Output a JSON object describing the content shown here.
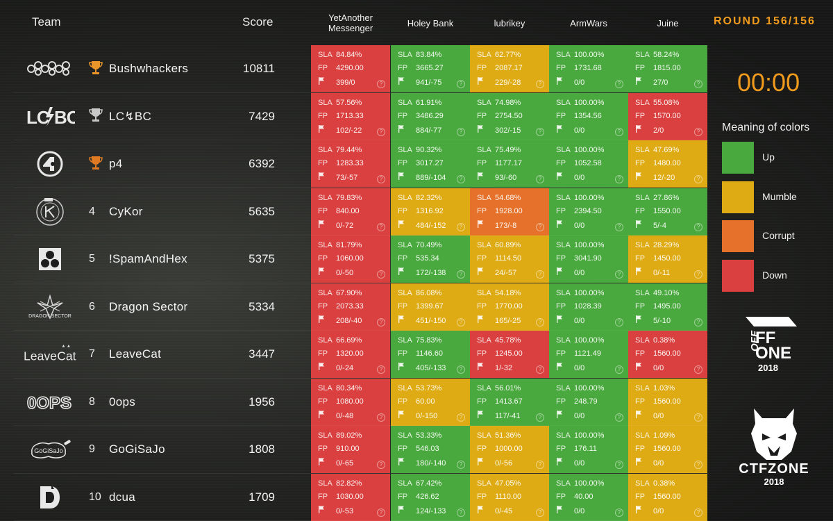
{
  "header": {
    "team": "Team",
    "score": "Score",
    "round": "ROUND 156/156"
  },
  "services": [
    "YetAnother Messenger",
    "Holey Bank",
    "lubrikey",
    "ArmWars",
    "Juine"
  ],
  "timer": "00:00",
  "legend": {
    "title": "Meaning of colors",
    "items": [
      {
        "label": "Up",
        "color": "#49a93e"
      },
      {
        "label": "Mumble",
        "color": "#dfab14"
      },
      {
        "label": "Corrupt",
        "color": "#e5712a"
      },
      {
        "label": "Down",
        "color": "#d9403f"
      }
    ]
  },
  "labels": {
    "sla": "SLA",
    "fp": "FP",
    "help": "?"
  },
  "sponsors": {
    "offzone": {
      "line1": "FF",
      "line2": "ONE",
      "year": "2018"
    },
    "ctfzone": {
      "name": "CTFZONE",
      "year": "2018"
    }
  },
  "teams": [
    {
      "rank": "",
      "trophy": "gold",
      "logo": "bushwhackers-logo",
      "name": "Bushwhackers",
      "score": "10811",
      "cells": [
        {
          "status": "down",
          "sla": "84.84%",
          "fp": "4290.00",
          "flags": "399/0"
        },
        {
          "status": "up",
          "sla": "83.84%",
          "fp": "3665.27",
          "flags": "941/-75"
        },
        {
          "status": "mumble",
          "sla": "62.77%",
          "fp": "2087.17",
          "flags": "229/-28"
        },
        {
          "status": "up",
          "sla": "100.00%",
          "fp": "1731.68",
          "flags": "0/0"
        },
        {
          "status": "up",
          "sla": "58.24%",
          "fp": "1815.00",
          "flags": "27/0"
        }
      ]
    },
    {
      "rank": "",
      "trophy": "silver",
      "logo": "lcbc-logo",
      "name": "LC↯BC",
      "score": "7429",
      "cells": [
        {
          "status": "down",
          "sla": "57.56%",
          "fp": "1713.33",
          "flags": "102/-22"
        },
        {
          "status": "up",
          "sla": "61.91%",
          "fp": "3486.29",
          "flags": "884/-77"
        },
        {
          "status": "up",
          "sla": "74.98%",
          "fp": "2754.50",
          "flags": "302/-15"
        },
        {
          "status": "up",
          "sla": "100.00%",
          "fp": "1354.56",
          "flags": "0/0"
        },
        {
          "status": "down",
          "sla": "55.08%",
          "fp": "1570.00",
          "flags": "2/0"
        }
      ]
    },
    {
      "rank": "",
      "trophy": "bronze",
      "logo": "p4-logo",
      "name": "p4",
      "score": "6392",
      "cells": [
        {
          "status": "down",
          "sla": "79.44%",
          "fp": "1283.33",
          "flags": "73/-57"
        },
        {
          "status": "up",
          "sla": "90.32%",
          "fp": "3017.27",
          "flags": "889/-104"
        },
        {
          "status": "up",
          "sla": "75.49%",
          "fp": "1177.17",
          "flags": "93/-60"
        },
        {
          "status": "up",
          "sla": "100.00%",
          "fp": "1052.58",
          "flags": "0/0"
        },
        {
          "status": "mumble",
          "sla": "47.69%",
          "fp": "1480.00",
          "flags": "12/-20"
        }
      ]
    },
    {
      "rank": "4",
      "trophy": "",
      "logo": "cykor-logo",
      "name": "CyKor",
      "score": "5635",
      "cells": [
        {
          "status": "down",
          "sla": "79.83%",
          "fp": "840.00",
          "flags": "0/-72"
        },
        {
          "status": "mumble",
          "sla": "82.32%",
          "fp": "1316.92",
          "flags": "484/-152"
        },
        {
          "status": "corrupt",
          "sla": "54.68%",
          "fp": "1928.00",
          "flags": "173/-8"
        },
        {
          "status": "up",
          "sla": "100.00%",
          "fp": "2394.50",
          "flags": "0/0"
        },
        {
          "status": "up",
          "sla": "27.86%",
          "fp": "1550.00",
          "flags": "5/-4"
        }
      ]
    },
    {
      "rank": "5",
      "trophy": "",
      "logo": "spamandhex-logo",
      "name": "!SpamAndHex",
      "score": "5375",
      "cells": [
        {
          "status": "down",
          "sla": "81.79%",
          "fp": "1060.00",
          "flags": "0/-50"
        },
        {
          "status": "up",
          "sla": "70.49%",
          "fp": "535.34",
          "flags": "172/-138"
        },
        {
          "status": "mumble",
          "sla": "60.89%",
          "fp": "1114.50",
          "flags": "24/-57"
        },
        {
          "status": "up",
          "sla": "100.00%",
          "fp": "3041.90",
          "flags": "0/0"
        },
        {
          "status": "mumble",
          "sla": "28.29%",
          "fp": "1450.00",
          "flags": "0/-11"
        }
      ]
    },
    {
      "rank": "6",
      "trophy": "",
      "logo": "dragonsector-logo",
      "name": "Dragon Sector",
      "score": "5334",
      "cells": [
        {
          "status": "down",
          "sla": "67.90%",
          "fp": "2073.33",
          "flags": "208/-40"
        },
        {
          "status": "mumble",
          "sla": "86.08%",
          "fp": "1399.67",
          "flags": "451/-150"
        },
        {
          "status": "mumble",
          "sla": "54.18%",
          "fp": "1770.00",
          "flags": "165/-25"
        },
        {
          "status": "up",
          "sla": "100.00%",
          "fp": "1028.39",
          "flags": "0/0"
        },
        {
          "status": "up",
          "sla": "49.10%",
          "fp": "1495.00",
          "flags": "5/-10"
        }
      ]
    },
    {
      "rank": "7",
      "trophy": "",
      "logo": "leavecat-logo",
      "name": "LeaveCat",
      "score": "3447",
      "cells": [
        {
          "status": "down",
          "sla": "66.69%",
          "fp": "1320.00",
          "flags": "0/-24"
        },
        {
          "status": "up",
          "sla": "75.83%",
          "fp": "1146.60",
          "flags": "405/-133"
        },
        {
          "status": "down",
          "sla": "45.78%",
          "fp": "1245.00",
          "flags": "1/-32"
        },
        {
          "status": "up",
          "sla": "100.00%",
          "fp": "1121.49",
          "flags": "0/0"
        },
        {
          "status": "down",
          "sla": "0.38%",
          "fp": "1560.00",
          "flags": "0/0"
        }
      ]
    },
    {
      "rank": "8",
      "trophy": "",
      "logo": "0ops-logo",
      "name": "0ops",
      "score": "1956",
      "cells": [
        {
          "status": "down",
          "sla": "80.34%",
          "fp": "1080.00",
          "flags": "0/-48"
        },
        {
          "status": "mumble",
          "sla": "53.73%",
          "fp": "60.00",
          "flags": "0/-150"
        },
        {
          "status": "up",
          "sla": "56.01%",
          "fp": "1413.67",
          "flags": "117/-41"
        },
        {
          "status": "up",
          "sla": "100.00%",
          "fp": "248.79",
          "flags": "0/0"
        },
        {
          "status": "mumble",
          "sla": "1.03%",
          "fp": "1560.00",
          "flags": "0/0"
        }
      ]
    },
    {
      "rank": "9",
      "trophy": "",
      "logo": "gogisajo-logo",
      "name": "GoGiSaJo",
      "score": "1808",
      "cells": [
        {
          "status": "down",
          "sla": "89.02%",
          "fp": "910.00",
          "flags": "0/-65"
        },
        {
          "status": "up",
          "sla": "53.33%",
          "fp": "546.03",
          "flags": "180/-140"
        },
        {
          "status": "mumble",
          "sla": "51.36%",
          "fp": "1000.00",
          "flags": "0/-56"
        },
        {
          "status": "up",
          "sla": "100.00%",
          "fp": "176.11",
          "flags": "0/0"
        },
        {
          "status": "mumble",
          "sla": "1.09%",
          "fp": "1560.00",
          "flags": "0/0"
        }
      ]
    },
    {
      "rank": "10",
      "trophy": "",
      "logo": "dcua-logo",
      "name": "dcua",
      "score": "1709",
      "cells": [
        {
          "status": "down",
          "sla": "82.82%",
          "fp": "1030.00",
          "flags": "0/-53"
        },
        {
          "status": "up",
          "sla": "67.42%",
          "fp": "426.62",
          "flags": "124/-133"
        },
        {
          "status": "mumble",
          "sla": "47.05%",
          "fp": "1110.00",
          "flags": "0/-45"
        },
        {
          "status": "up",
          "sla": "100.00%",
          "fp": "40.00",
          "flags": "0/0"
        },
        {
          "status": "mumble",
          "sla": "0.38%",
          "fp": "1560.00",
          "flags": "0/0"
        }
      ]
    }
  ]
}
